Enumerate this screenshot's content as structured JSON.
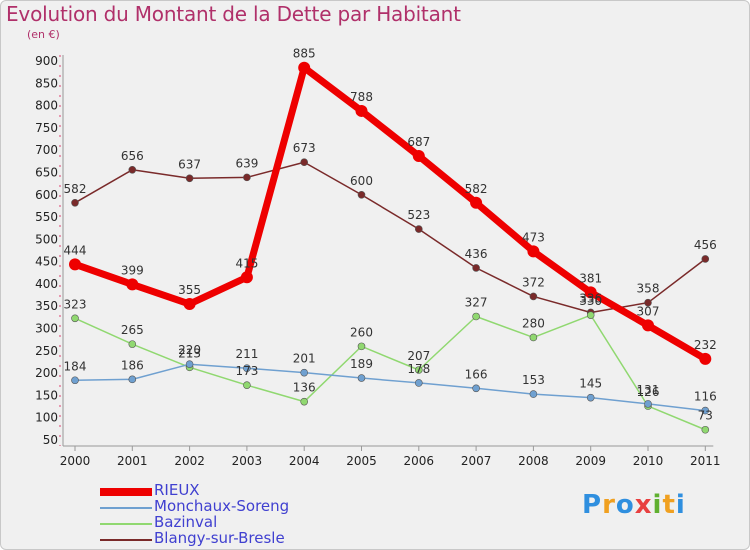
{
  "title": "Evolution du Montant de la Dette par Habitant",
  "unit_label": "(en €)",
  "logo": {
    "letters": [
      "P",
      "r",
      "o",
      "x",
      "i",
      "t",
      "i"
    ],
    "colors": [
      "#2f8fdf",
      "#f0a020",
      "#2f8fdf",
      "#e84040",
      "#60b030",
      "#f0a020",
      "#2f8fdf"
    ]
  },
  "chart_data": {
    "type": "line",
    "x": [
      "2000",
      "2001",
      "2002",
      "2003",
      "2004",
      "2005",
      "2006",
      "2007",
      "2008",
      "2009",
      "2010",
      "2011"
    ],
    "ylim": [
      50,
      900
    ],
    "yticks": [
      50,
      100,
      150,
      200,
      250,
      300,
      350,
      400,
      450,
      500,
      550,
      600,
      650,
      700,
      750,
      800,
      850,
      900
    ],
    "grid": false,
    "legend_position": "bottom-left",
    "series": [
      {
        "name": "Blangy-sur-Bresle",
        "color": "#7a2a2a",
        "width": 1.5,
        "marker": 3.5,
        "values": [
          582,
          656,
          637,
          639,
          673,
          600,
          523,
          436,
          372,
          336,
          358,
          456
        ],
        "labels": [
          "582",
          "656",
          "637",
          "639",
          "673",
          "600",
          "523",
          "436",
          "372",
          "336",
          "358",
          "456"
        ]
      },
      {
        "name": "Bazinval",
        "color": "#90d870",
        "width": 1.5,
        "marker": 3.5,
        "values": [
          323,
          265,
          213,
          173,
          136,
          260,
          207,
          327,
          280,
          330,
          126,
          73
        ],
        "labels": [
          "323",
          "265",
          "213",
          "173",
          "136",
          "260",
          "207",
          "327",
          "280",
          "330",
          "126",
          "73"
        ]
      },
      {
        "name": "Monchaux-Soreng",
        "color": "#6fa0d0",
        "width": 1.5,
        "marker": 3.5,
        "values": [
          184,
          186,
          220,
          211,
          201,
          189,
          178,
          166,
          153,
          145,
          131,
          116
        ],
        "labels": [
          "184",
          "186",
          "220",
          "211",
          "201",
          "189",
          "178",
          "166",
          "153",
          "145",
          "131",
          "116"
        ]
      },
      {
        "name": "RIEUX",
        "color": "#ee0000",
        "width": 7,
        "marker": 6,
        "values": [
          444,
          399,
          355,
          415,
          885,
          788,
          687,
          582,
          473,
          381,
          307,
          232
        ],
        "labels": [
          "444",
          "399",
          "355",
          "415",
          "885",
          "788",
          "687",
          "582",
          "473",
          "381",
          "307",
          "232"
        ]
      }
    ],
    "legend_order": [
      "RIEUX",
      "Monchaux-Soreng",
      "Bazinval",
      "Blangy-sur-Bresle"
    ]
  }
}
